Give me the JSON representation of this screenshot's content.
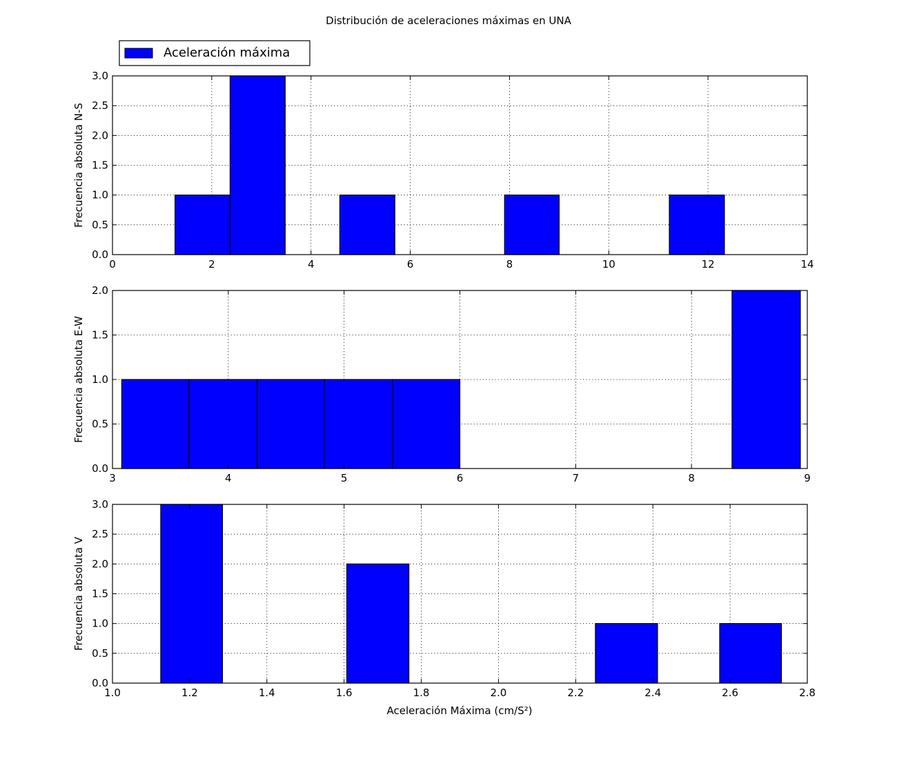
{
  "chart_data": {
    "type": "bar",
    "title": "Distribución de aceleraciones máximas en UNA",
    "legend": {
      "label": "Aceleración máxima",
      "placement": "upper-left",
      "color": "#0000ff"
    },
    "bar_color": "#0000ff",
    "grid": true,
    "xlabel": "Aceleración Máxima (cm/S²)",
    "panels": [
      {
        "id": "ns",
        "ylabel": "Frecuencia absoluta N-S",
        "xlim": [
          0,
          14
        ],
        "ylim": [
          0,
          3
        ],
        "xticks": [
          0,
          2,
          4,
          6,
          8,
          10,
          12,
          14
        ],
        "xtick_labels": [
          "0",
          "2",
          "4",
          "6",
          "8",
          "10",
          "12",
          "14"
        ],
        "yticks": [
          0,
          0.5,
          1,
          1.5,
          2,
          2.5,
          3
        ],
        "ytick_labels": [
          "0.0",
          "0.5",
          "1.0",
          "1.5",
          "2.0",
          "2.5",
          "3.0"
        ],
        "bins": [
          {
            "start": 1.26,
            "end": 2.37,
            "value": 1
          },
          {
            "start": 2.37,
            "end": 3.48,
            "value": 3
          },
          {
            "start": 4.58,
            "end": 5.69,
            "value": 1
          },
          {
            "start": 7.9,
            "end": 9.0,
            "value": 1
          },
          {
            "start": 11.22,
            "end": 12.33,
            "value": 1
          }
        ]
      },
      {
        "id": "ew",
        "ylabel": "Frecuencia absoluta E-W",
        "xlim": [
          3,
          9
        ],
        "ylim": [
          0,
          2
        ],
        "xticks": [
          3,
          4,
          5,
          6,
          7,
          8,
          9
        ],
        "xtick_labels": [
          "3",
          "4",
          "5",
          "6",
          "7",
          "8",
          "9"
        ],
        "yticks": [
          0,
          0.5,
          1,
          1.5,
          2
        ],
        "ytick_labels": [
          "0.0",
          "0.5",
          "1.0",
          "1.5",
          "2.0"
        ],
        "bins": [
          {
            "start": 3.08,
            "end": 3.66,
            "value": 1
          },
          {
            "start": 3.66,
            "end": 4.25,
            "value": 1
          },
          {
            "start": 4.25,
            "end": 4.83,
            "value": 1
          },
          {
            "start": 4.83,
            "end": 5.42,
            "value": 1
          },
          {
            "start": 5.42,
            "end": 6.0,
            "value": 1
          },
          {
            "start": 8.35,
            "end": 8.94,
            "value": 2
          }
        ]
      },
      {
        "id": "v",
        "ylabel": "Frecuencia absoluta V",
        "xlim": [
          1.0,
          2.8
        ],
        "ylim": [
          0,
          3
        ],
        "xticks": [
          1.0,
          1.2,
          1.4,
          1.6,
          1.8,
          2.0,
          2.2,
          2.4,
          2.6,
          2.8
        ],
        "xtick_labels": [
          "1.0",
          "1.2",
          "1.4",
          "1.6",
          "1.8",
          "2.0",
          "2.2",
          "2.4",
          "2.6",
          "2.8"
        ],
        "yticks": [
          0,
          0.5,
          1,
          1.5,
          2,
          2.5,
          3
        ],
        "ytick_labels": [
          "0.0",
          "0.5",
          "1.0",
          "1.5",
          "2.0",
          "2.5",
          "3.0"
        ],
        "bins": [
          {
            "start": 1.125,
            "end": 1.285,
            "value": 3
          },
          {
            "start": 1.607,
            "end": 1.768,
            "value": 2
          },
          {
            "start": 2.251,
            "end": 2.412,
            "value": 1
          },
          {
            "start": 2.573,
            "end": 2.733,
            "value": 1
          }
        ]
      }
    ]
  }
}
